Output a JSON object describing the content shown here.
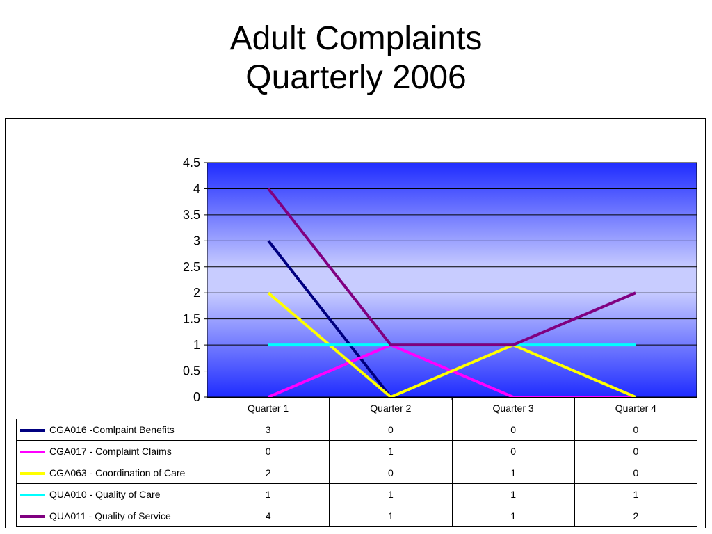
{
  "title_line1": "Adult Complaints",
  "title_line2": "Quarterly 2006",
  "chart_data": {
    "type": "line",
    "categories": [
      "Quarter 1",
      "Quarter 2",
      "Quarter 3",
      "Quarter 4"
    ],
    "ylim": [
      0,
      4.5
    ],
    "yticks": [
      "0",
      "0.5",
      "1",
      "1.5",
      "2",
      "2.5",
      "3",
      "3.5",
      "4",
      "4.5"
    ],
    "grid": true,
    "legend": "data-table",
    "plot_background": "blue-gradient",
    "series": [
      {
        "name": "CGA016 -Comlpaint Benefits",
        "color": "#000080",
        "values": [
          "3",
          "0",
          "0",
          "0"
        ]
      },
      {
        "name": "CGA017 - Complaint Claims",
        "color": "#FF00FF",
        "values": [
          "0",
          "1",
          "0",
          "0"
        ]
      },
      {
        "name": "CGA063 - Coordination of Care",
        "color": "#FFFF00",
        "values": [
          "2",
          "0",
          "1",
          "0"
        ]
      },
      {
        "name": "QUA010 - Quality of Care",
        "color": "#00FFFF",
        "values": [
          "1",
          "1",
          "1",
          "1"
        ]
      },
      {
        "name": "QUA011 - Quality of Service",
        "color": "#800080",
        "values": [
          "4",
          "1",
          "1",
          "2"
        ]
      }
    ]
  }
}
